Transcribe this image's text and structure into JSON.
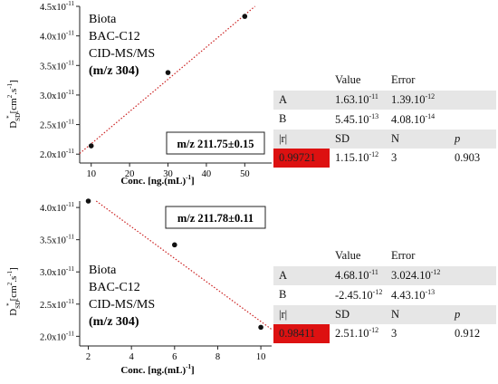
{
  "charts": [
    {
      "legend": [
        "Biota",
        "BAC-C12",
        "CID-MS/MS",
        "(m/z 304)"
      ],
      "mz_label": "m/z 211.75±0.15",
      "xlabel": "Conc. [ng.(mL)",
      "xlabel_exp": "-1",
      "ylabel": "D",
      "ylabel_sub": "SD",
      "ylabel_unit": "[cm",
      "ylabel_exp1": "2",
      "ylabel_mid": ".s",
      "ylabel_exp2": "-1",
      "x_ticks": [
        "10",
        "20",
        "30",
        "40",
        "50"
      ],
      "y_ticks": [
        {
          "m": "2.0x10",
          "e": "-11"
        },
        {
          "m": "2.5x10",
          "e": "-11"
        },
        {
          "m": "3.0x10",
          "e": "-11"
        },
        {
          "m": "3.5x10",
          "e": "-11"
        },
        {
          "m": "4.0x10",
          "e": "-11"
        },
        {
          "m": "4.5x10",
          "e": "-11"
        }
      ]
    },
    {
      "legend": [
        "Biota",
        "BAC-C12",
        "CID-MS/MS",
        "(m/z 304)"
      ],
      "mz_label": "m/z 211.78±0.11",
      "xlabel": "Conc. [ng.(mL)",
      "xlabel_exp": "-1",
      "ylabel": "D",
      "ylabel_sub": "SD",
      "ylabel_unit": "[cm",
      "ylabel_exp1": "2",
      "ylabel_mid": ".s",
      "ylabel_exp2": "-1",
      "x_ticks": [
        "2",
        "4",
        "6",
        "8",
        "10"
      ],
      "y_ticks": [
        {
          "m": "2.0x10",
          "e": "-11"
        },
        {
          "m": "2.5x10",
          "e": "-11"
        },
        {
          "m": "3.0x10",
          "e": "-11"
        },
        {
          "m": "3.5x10",
          "e": "-11"
        },
        {
          "m": "4.0x10",
          "e": "-11"
        }
      ]
    }
  ],
  "chart_data": [
    {
      "type": "scatter",
      "title": "",
      "xlabel": "Conc. [ng.(mL)-1]",
      "ylabel": "D*SD [cm2.s-1]",
      "xlim": [
        7,
        57
      ],
      "ylim": [
        1.85e-11,
        4.5e-11
      ],
      "x": [
        10,
        30,
        50
      ],
      "y": [
        2.14e-11,
        3.38e-11,
        4.33e-11
      ],
      "fit": {
        "intercept": 1.63e-11,
        "slope": 5.45e-13
      },
      "grid": false,
      "marker_color": "#111111",
      "fit_color": "#cc2222"
    },
    {
      "type": "scatter",
      "title": "",
      "xlabel": "Conc. [ng.(mL)-1]",
      "ylabel": "D*SD [cm2.s-1]",
      "xlim": [
        1.6,
        10.5
      ],
      "ylim": [
        1.85e-11,
        4.1e-11
      ],
      "x": [
        2,
        6,
        10
      ],
      "y": [
        4.1e-11,
        3.42e-11,
        2.14e-11
      ],
      "fit": {
        "intercept": 4.68e-11,
        "slope": -2.45e-12
      },
      "grid": false,
      "marker_color": "#111111",
      "fit_color": "#cc2222"
    }
  ],
  "tables": [
    {
      "header": [
        "Value",
        "Error"
      ],
      "rows": [
        {
          "label": "A",
          "value_m": "1.63.10",
          "value_e": "-11",
          "error_m": "1.39.10",
          "error_e": "-12"
        },
        {
          "label": "B",
          "value_m": "5.45.10",
          "value_e": "-13",
          "error_m": "4.08.10",
          "error_e": "-14"
        }
      ],
      "stats_header": [
        "|r|",
        "SD",
        "N",
        "p"
      ],
      "stats": {
        "r": "0.99721",
        "sd_m": "1.15.10",
        "sd_e": "-12",
        "n": "3",
        "p": "0.903"
      }
    },
    {
      "header": [
        "Value",
        "Error"
      ],
      "rows": [
        {
          "label": "A",
          "value_m": "4.68.10",
          "value_e": "-11",
          "error_m": "3.024.10",
          "error_e": "-12"
        },
        {
          "label": "B",
          "value_m": "-2.45.10",
          "value_e": "-12",
          "error_m": "4.43.10",
          "error_e": "-13"
        }
      ],
      "stats_header": [
        "|r|",
        "SD",
        "N",
        "p"
      ],
      "stats": {
        "r": "0.98411",
        "sd_m": "2.51.10",
        "sd_e": "-12",
        "n": "3",
        "p": "0.912"
      }
    }
  ],
  "colors": {
    "fit_line": "#cc2222",
    "highlight": "#dd1111",
    "shade": "#e6e6e6"
  }
}
